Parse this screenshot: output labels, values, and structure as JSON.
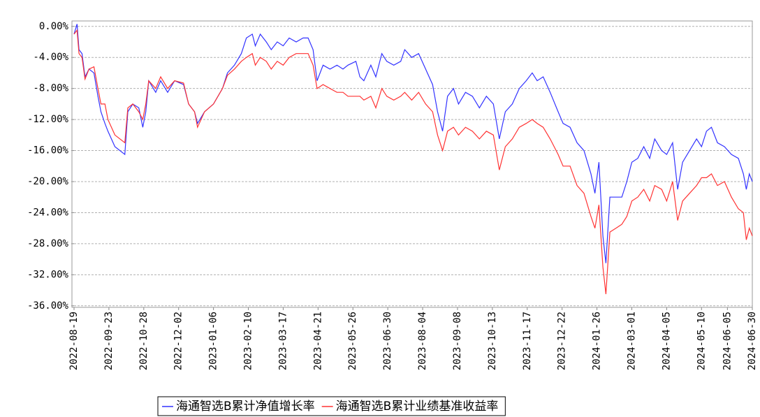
{
  "chart_data": {
    "type": "line",
    "x": [
      "2022-08-19",
      "2022-08-22",
      "2022-08-24",
      "2022-08-27",
      "2022-08-30",
      "2022-09-03",
      "2022-09-08",
      "2022-09-12",
      "2022-09-15",
      "2022-09-19",
      "2022-09-22",
      "2022-09-29",
      "2022-10-09",
      "2022-10-12",
      "2022-10-17",
      "2022-10-23",
      "2022-10-27",
      "2022-10-30",
      "2022-11-02",
      "2022-11-09",
      "2022-11-14",
      "2022-11-21",
      "2022-11-28",
      "2022-12-07",
      "2022-12-12",
      "2022-12-18",
      "2022-12-21",
      "2022-12-28",
      "2023-01-06",
      "2023-01-15",
      "2023-01-20",
      "2023-01-27",
      "2023-02-03",
      "2023-02-08",
      "2023-02-14",
      "2023-02-17",
      "2023-02-22",
      "2023-02-28",
      "2023-03-05",
      "2023-03-11",
      "2023-03-17",
      "2023-03-23",
      "2023-03-30",
      "2023-04-06",
      "2023-04-11",
      "2023-04-16",
      "2023-04-20",
      "2023-04-26",
      "2023-05-03",
      "2023-05-10",
      "2023-05-16",
      "2023-05-21",
      "2023-05-29",
      "2023-06-02",
      "2023-06-06",
      "2023-06-13",
      "2023-06-18",
      "2023-06-24",
      "2023-06-29",
      "2023-07-06",
      "2023-07-13",
      "2023-07-17",
      "2023-07-24",
      "2023-07-31",
      "2023-08-07",
      "2023-08-14",
      "2023-08-19",
      "2023-08-24",
      "2023-08-29",
      "2023-09-04",
      "2023-09-09",
      "2023-09-16",
      "2023-09-23",
      "2023-09-30",
      "2023-10-07",
      "2023-10-14",
      "2023-10-20",
      "2023-10-26",
      "2023-11-02",
      "2023-11-09",
      "2023-11-16",
      "2023-11-22",
      "2023-11-27",
      "2023-12-03",
      "2023-12-10",
      "2023-12-18",
      "2023-12-23",
      "2023-12-30",
      "2024-01-06",
      "2024-01-13",
      "2024-01-20",
      "2024-01-24",
      "2024-01-28",
      "2024-02-01",
      "2024-02-04",
      "2024-02-08",
      "2024-02-14",
      "2024-02-20",
      "2024-02-25",
      "2024-03-01",
      "2024-03-07",
      "2024-03-13",
      "2024-03-19",
      "2024-03-24",
      "2024-03-31",
      "2024-04-05",
      "2024-04-11",
      "2024-04-16",
      "2024-04-21",
      "2024-04-28",
      "2024-05-05",
      "2024-05-10",
      "2024-05-15",
      "2024-05-20",
      "2024-05-26",
      "2024-06-02",
      "2024-06-09",
      "2024-06-16",
      "2024-06-21",
      "2024-06-24",
      "2024-06-27",
      "2024-06-30"
    ],
    "series": [
      {
        "name": "海通智选B累计净值增长率",
        "color": "#3333ff",
        "values": [
          -1,
          0.3,
          -3,
          -3.5,
          -6.5,
          -5.5,
          -6,
          -9,
          -11,
          -12.5,
          -13.5,
          -15.5,
          -16.5,
          -11,
          -10,
          -10.5,
          -13,
          -11,
          -7,
          -8.5,
          -7,
          -8.5,
          -7,
          -7.5,
          -10,
          -11,
          -12.5,
          -11,
          -10,
          -8,
          -6,
          -5,
          -3.5,
          -1.5,
          -1,
          -2.5,
          -1,
          -2,
          -3,
          -2,
          -2.5,
          -1.5,
          -2,
          -1.5,
          -1.5,
          -3,
          -7,
          -5,
          -5.5,
          -5,
          -5.5,
          -5,
          -4.5,
          -6.5,
          -7,
          -5,
          -6.5,
          -3.5,
          -4.5,
          -5,
          -4.5,
          -3,
          -4,
          -3.5,
          -5.5,
          -7.5,
          -11,
          -13.5,
          -9,
          -8,
          -10,
          -8.5,
          -9,
          -10.5,
          -9,
          -10,
          -14.5,
          -11,
          -10,
          -8,
          -7,
          -6,
          -7,
          -6.5,
          -8.5,
          -11,
          -12.5,
          -13,
          -15,
          -16,
          -19,
          -21.5,
          -17.5,
          -27,
          -30.5,
          -22,
          -22,
          -22,
          -20,
          -17.5,
          -17,
          -15.5,
          -17,
          -14.5,
          -16,
          -16.5,
          -15,
          -21,
          -17.5,
          -16,
          -14.5,
          -15.5,
          -13.5,
          -13,
          -15,
          -15.5,
          -16.5,
          -17,
          -19,
          -21,
          -19,
          -20
        ]
      },
      {
        "name": "海通智选B累计业绩基准收益率",
        "color": "#ff3333",
        "values": [
          -1,
          -0.5,
          -3.5,
          -4,
          -6.8,
          -5.5,
          -5.2,
          -8,
          -10,
          -10,
          -12,
          -14,
          -15,
          -10.5,
          -10,
          -11,
          -12,
          -10,
          -7,
          -8,
          -6.5,
          -8,
          -7,
          -7.3,
          -10,
          -11,
          -13,
          -11,
          -10,
          -8,
          -6.3,
          -5.5,
          -4.5,
          -4,
          -3.5,
          -5,
          -4,
          -4.5,
          -5.5,
          -4.5,
          -5,
          -4,
          -3.5,
          -3.5,
          -3.5,
          -5,
          -8,
          -7.5,
          -8,
          -8.5,
          -8.5,
          -9,
          -9,
          -9,
          -9.5,
          -9,
          -10.5,
          -8,
          -9,
          -9.5,
          -9,
          -8.5,
          -9.5,
          -8.5,
          -10,
          -11,
          -14,
          -16,
          -13.5,
          -13,
          -14,
          -13,
          -13.5,
          -14.5,
          -13.5,
          -14,
          -18.5,
          -15.5,
          -14.5,
          -13,
          -12.5,
          -12,
          -12.5,
          -13,
          -14.5,
          -16.5,
          -18,
          -18,
          -20.5,
          -21.5,
          -24.5,
          -26,
          -23,
          -31,
          -34.5,
          -26.5,
          -26,
          -25.5,
          -24.5,
          -22.5,
          -22,
          -21,
          -22.5,
          -20.5,
          -21,
          -22.5,
          -20,
          -25,
          -22.5,
          -21.5,
          -20.5,
          -19.5,
          -19.5,
          -19,
          -20.5,
          -20,
          -22,
          -23.5,
          -24,
          -27.5,
          -26,
          -27
        ]
      }
    ],
    "xlim": [
      "2022-08-19",
      "2024-06-30"
    ],
    "xticks": [
      "2022-08-19",
      "2022-09-23",
      "2022-10-28",
      "2022-12-02",
      "2023-01-06",
      "2023-02-10",
      "2023-03-17",
      "2023-04-21",
      "2023-05-26",
      "2023-06-30",
      "2023-08-04",
      "2023-09-08",
      "2023-10-13",
      "2023-11-17",
      "2023-12-22",
      "2024-01-26",
      "2024-03-01",
      "2024-04-05",
      "2024-05-10",
      "2024-06-05",
      "2024-06-30"
    ],
    "ylim": [
      -36.2,
      0.7
    ],
    "yticks": [
      {
        "value": 0,
        "label": "0.00%"
      },
      {
        "value": -4,
        "label": "-4.00%"
      },
      {
        "value": -8,
        "label": "-8.00%"
      },
      {
        "value": -12,
        "label": "-12.00%"
      },
      {
        "value": -16,
        "label": "-16.00%"
      },
      {
        "value": -20,
        "label": "-20.00%"
      },
      {
        "value": -24,
        "label": "-24.00%"
      },
      {
        "value": -28,
        "label": "-28.00%"
      },
      {
        "value": -32,
        "label": "-32.00%"
      },
      {
        "value": -36,
        "label": "-36.00%"
      }
    ],
    "grid": true
  }
}
